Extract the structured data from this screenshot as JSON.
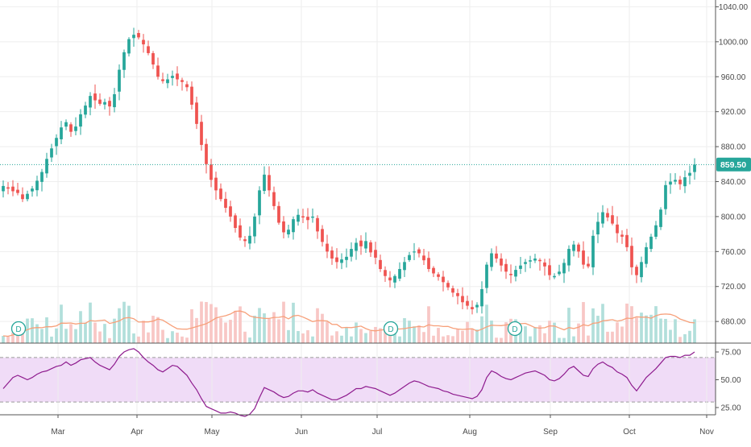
{
  "colors": {
    "up": "#26a69a",
    "down": "#ef5350",
    "vol_up": "#b2dfdb",
    "vol_down": "#f8c7c5",
    "ma": "#f7a07a",
    "price_line": "#26a69a",
    "rsi_line": "#8e1b8e",
    "rsi_band": "#f0dcf7",
    "grid": "#eeeeee",
    "axis_text": "#4a4a4a",
    "dividend_marker": "#26a69a"
  },
  "price_tag": "859.50",
  "dividend_marker_label": "D",
  "chart_data": [
    {
      "type": "candlestick",
      "title": "",
      "ylim": [
        670,
        1045
      ],
      "y_ticks": [
        "1040.00",
        "1000.00",
        "960.00",
        "920.00",
        "880.00",
        "840.00",
        "800.00",
        "760.00",
        "720.00",
        "680.00"
      ],
      "x_ticks": [
        "Mar",
        "Apr",
        "May",
        "Jun",
        "Jul",
        "Aug",
        "Sep",
        "Oct",
        "Nov"
      ],
      "last_price": 859.5,
      "grid": true,
      "close": [
        835,
        832,
        829,
        827,
        820,
        826,
        832,
        841,
        851,
        866,
        878,
        890,
        902,
        908,
        897,
        903,
        917,
        927,
        938,
        933,
        929,
        931,
        926,
        940,
        968,
        988,
        1003,
        1008,
        1005,
        997,
        987,
        974,
        960,
        955,
        957,
        961,
        957,
        954,
        948,
        928,
        906,
        882,
        860,
        842,
        830,
        820,
        810,
        800,
        787,
        776,
        772,
        778,
        800,
        830,
        848,
        830,
        812,
        793,
        782,
        785,
        797,
        802,
        799,
        796,
        800,
        783,
        771,
        760,
        752,
        748,
        751,
        754,
        763,
        770,
        766,
        772,
        759,
        753,
        740,
        732,
        727,
        732,
        740,
        748,
        756,
        760,
        758,
        750,
        740,
        735,
        731,
        725,
        719,
        713,
        709,
        702,
        698,
        694,
        699,
        717,
        745,
        758,
        752,
        744,
        737,
        733,
        739,
        744,
        748,
        750,
        752,
        749,
        743,
        733,
        732,
        737,
        747,
        763,
        768,
        760,
        745,
        743,
        778,
        794,
        805,
        799,
        792,
        781,
        777,
        765,
        742,
        733,
        748,
        765,
        777,
        790,
        808,
        836,
        840,
        842,
        837,
        845,
        850,
        859.5
      ],
      "rsi": {
        "ylim": [
          15,
          80
        ],
        "y_ticks": [
          "75.00",
          "50.00",
          "25.00"
        ],
        "bands": [
          30,
          70
        ],
        "values": [
          42,
          47,
          52,
          54,
          52,
          50,
          52,
          55,
          57,
          58,
          60,
          62,
          63,
          66,
          63,
          65,
          68,
          69,
          70,
          66,
          63,
          61,
          59,
          64,
          71,
          75,
          77,
          78,
          75,
          70,
          66,
          63,
          59,
          57,
          60,
          63,
          62,
          58,
          54,
          47,
          41,
          33,
          26,
          24,
          22,
          20,
          20,
          21,
          20,
          18,
          17,
          19,
          24,
          34,
          43,
          41,
          39,
          36,
          34,
          35,
          38,
          40,
          40,
          39,
          41,
          38,
          36,
          34,
          32,
          32,
          34,
          36,
          39,
          42,
          42,
          44,
          43,
          42,
          40,
          38,
          36,
          38,
          41,
          44,
          47,
          49,
          48,
          46,
          44,
          43,
          42,
          40,
          39,
          37,
          36,
          35,
          34,
          33,
          35,
          41,
          52,
          58,
          56,
          53,
          51,
          50,
          52,
          54,
          56,
          57,
          58,
          56,
          54,
          50,
          49,
          51,
          55,
          60,
          62,
          58,
          54,
          53,
          60,
          64,
          66,
          63,
          61,
          57,
          55,
          52,
          45,
          40,
          46,
          52,
          56,
          60,
          65,
          70,
          71,
          71,
          70,
          72,
          72,
          75
        ]
      }
    }
  ]
}
